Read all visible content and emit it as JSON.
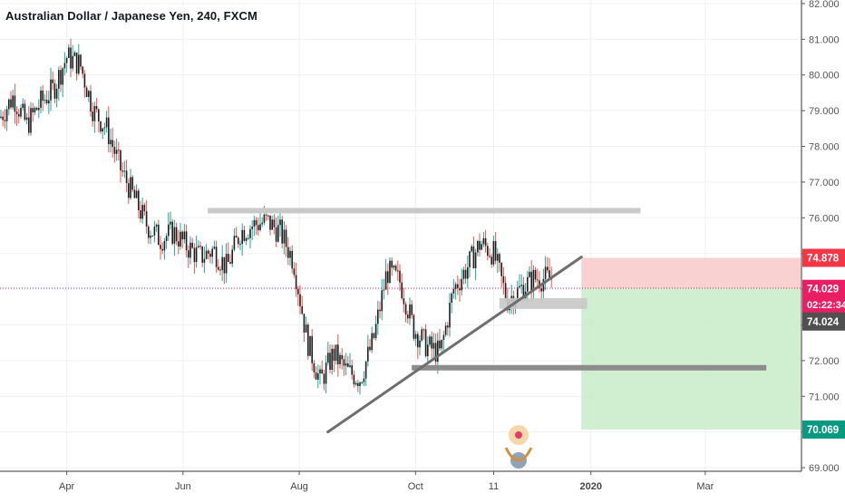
{
  "title": "Australian Dollar / Japanese Yen, 240, FXCM",
  "colors": {
    "up": "#26a69a",
    "down": "#ef5350",
    "candle_body": "#1e1e1e",
    "grid": "#eef0f3",
    "last_price": "#e91e63",
    "stop_zone": "#f9c9c9",
    "target_zone": "#c8ebc8",
    "level_gray": "#c8c8c8",
    "line_dark": "#6e6e6e",
    "stop_label": "#f23645",
    "target_label": "#089981"
  },
  "chart_data": {
    "type": "candlestick",
    "instrument": "Australian Dollar / Japanese Yen",
    "timeframe": "240",
    "source": "FXCM",
    "ylim": [
      68.9,
      82.1
    ],
    "yticks": [
      "82.000",
      "81.000",
      "80.000",
      "79.000",
      "78.000",
      "77.000",
      "76.000",
      "75.000",
      "74.000",
      "73.000",
      "72.000",
      "71.000",
      "70.000",
      "69.000"
    ],
    "yticks_values": [
      82,
      81,
      80,
      79,
      78,
      77,
      76,
      75,
      74,
      73,
      72,
      71,
      70,
      69
    ],
    "xticks": [
      "Apr",
      "Jun",
      "Aug",
      "Oct",
      "11",
      "2020",
      "Mar"
    ],
    "xticks_bold": [
      "2020"
    ],
    "x_range": [
      "2019-02-25",
      "2020-04-20"
    ],
    "xticks_dates": [
      "2019-04-01",
      "2019-06-01",
      "2019-08-01",
      "2019-10-01",
      "2019-11-11",
      "2020-01-01",
      "2020-03-01"
    ],
    "series": [
      {
        "x": [
          "2019-02-25",
          "2019-03-04",
          "2019-03-11",
          "2019-03-18",
          "2019-03-25",
          "2019-04-01",
          "2019-04-08",
          "2019-04-15",
          "2019-04-22",
          "2019-04-29",
          "2019-05-06",
          "2019-05-13",
          "2019-05-20",
          "2019-05-27",
          "2019-06-03",
          "2019-06-10",
          "2019-06-17",
          "2019-06-24",
          "2019-07-01",
          "2019-07-08",
          "2019-07-15",
          "2019-07-22",
          "2019-07-29",
          "2019-08-05",
          "2019-08-12",
          "2019-08-19",
          "2019-08-26",
          "2019-09-02",
          "2019-09-09",
          "2019-09-16",
          "2019-09-23",
          "2019-09-30",
          "2019-10-07",
          "2019-10-14",
          "2019-10-21",
          "2019-10-28",
          "2019-11-04",
          "2019-11-11",
          "2019-11-18",
          "2019-11-25",
          "2019-12-02"
        ],
        "close": [
          78.8,
          79.4,
          78.6,
          79.2,
          79.6,
          80.5,
          80.3,
          79.0,
          78.5,
          77.4,
          76.6,
          75.8,
          75.4,
          75.6,
          75.2,
          74.9,
          75.1,
          74.6,
          75.6,
          75.8,
          75.9,
          75.6,
          74.8,
          72.6,
          71.4,
          72.2,
          71.7,
          71.5,
          72.6,
          74.5,
          74.2,
          72.9,
          72.4,
          72.2,
          74.0,
          74.6,
          75.3,
          75.0,
          73.7,
          74.0,
          74.3
        ]
      }
    ],
    "annotations": [
      {
        "label": "resistance level",
        "from": "2019-06-14",
        "to": "2020-01-27",
        "y": 76.2
      },
      {
        "label": "small zone",
        "from": "2019-11-14",
        "to": "2019-12-30",
        "y": 73.6
      },
      {
        "label": "support level",
        "from": "2019-09-29",
        "to": "2020-04-02",
        "y": 71.8
      },
      {
        "label": "trend line",
        "from": [
          "2019-08-16",
          70.0
        ],
        "to": [
          "2019-12-27",
          74.9
        ]
      }
    ],
    "position": {
      "type": "short",
      "stop": 74.878,
      "entry": 74.024,
      "target": 70.069,
      "from": "2019-12-27",
      "to": "2020-04-20"
    },
    "price_labels": [
      {
        "text": "74.878",
        "role": "stop"
      },
      {
        "text": "74.029",
        "role": "last"
      },
      {
        "text": "02:22:34",
        "role": "countdown"
      },
      {
        "text": "74.024",
        "role": "entry"
      },
      {
        "text": "70.069",
        "role": "target"
      }
    ],
    "last_price": 74.029
  }
}
